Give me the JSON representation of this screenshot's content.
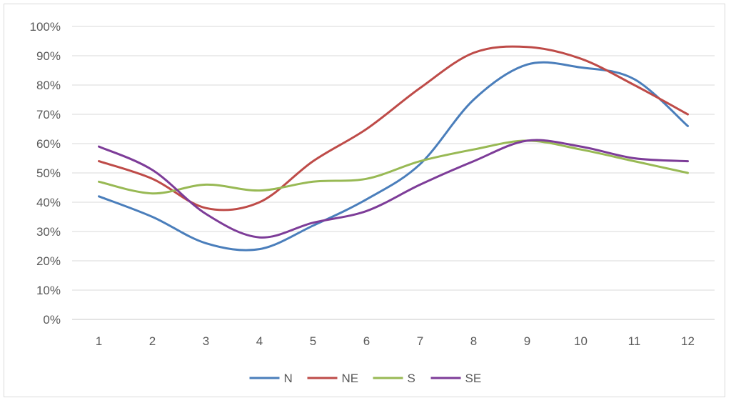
{
  "chart_data": {
    "type": "line",
    "title": "",
    "xlabel": "",
    "ylabel": "",
    "x": [
      1,
      2,
      3,
      4,
      5,
      6,
      7,
      8,
      9,
      10,
      11,
      12
    ],
    "x_tick_labels": [
      "1",
      "2",
      "3",
      "4",
      "5",
      "6",
      "7",
      "8",
      "9",
      "10",
      "11",
      "12"
    ],
    "ylim": [
      0,
      100
    ],
    "y_ticks": [
      0,
      10,
      20,
      30,
      40,
      50,
      60,
      70,
      80,
      90,
      100
    ],
    "y_tick_labels": [
      "0%",
      "10%",
      "20%",
      "30%",
      "40%",
      "50%",
      "60%",
      "70%",
      "80%",
      "90%",
      "100%"
    ],
    "grid": "horizontal",
    "legend_position": "bottom",
    "smooth": true,
    "series": [
      {
        "name": "N",
        "color": "#4a7ebb",
        "values": [
          42,
          35,
          26,
          24,
          32,
          41,
          53,
          75,
          87,
          86,
          82,
          66
        ]
      },
      {
        "name": "NE",
        "color": "#be4b48",
        "values": [
          54,
          48,
          38,
          40,
          54,
          65,
          79,
          91,
          93,
          89,
          80,
          70
        ]
      },
      {
        "name": "S",
        "color": "#98b954",
        "values": [
          47,
          43,
          46,
          44,
          47,
          48,
          54,
          58,
          61,
          58,
          54,
          50
        ]
      },
      {
        "name": "SE",
        "color": "#7d3c98",
        "values": [
          59,
          51,
          36,
          28,
          33,
          37,
          46,
          54,
          61,
          59,
          55,
          54
        ]
      }
    ]
  }
}
